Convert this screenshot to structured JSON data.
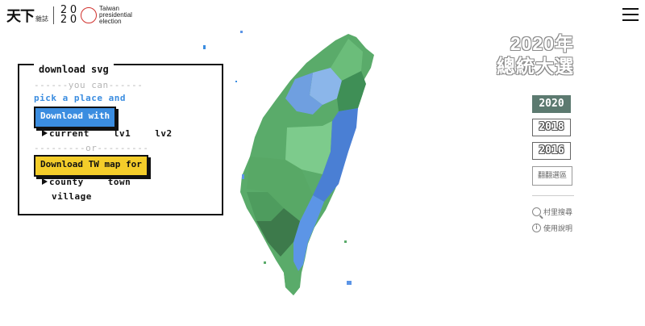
{
  "header": {
    "brand": "天下",
    "brand_sub": "雜誌",
    "logo_digits": [
      "2",
      "0",
      "2",
      "0"
    ],
    "logo_text": [
      "Taiwan",
      "presidential",
      "election"
    ],
    "menu_icon": "hamburger-icon"
  },
  "dialog": {
    "title": "download svg",
    "sep_top": "------you can------",
    "hint": "pick a place and",
    "download_with_label": "Download with",
    "levels": [
      "current",
      "lv1",
      "lv2"
    ],
    "sep_or": "---------or---------",
    "download_tw_label": "Download TW map for",
    "map_levels_row1": [
      "county",
      "town"
    ],
    "map_levels_row2": [
      "village"
    ]
  },
  "right_panel": {
    "title_line1": "2020年",
    "title_line2": "總統大選",
    "years": [
      "2020",
      "2018",
      "2016"
    ],
    "active_year": "2020",
    "region_button": "翻翻選區",
    "search_link": "村里搜尋",
    "help_link": "使用說明"
  },
  "colors": {
    "blue_button": "#3b8de0",
    "yellow_button": "#f4cd2a",
    "active_year": "#5c7a70",
    "map_green": "#5aab6a",
    "map_blue": "#4a7fd4"
  }
}
